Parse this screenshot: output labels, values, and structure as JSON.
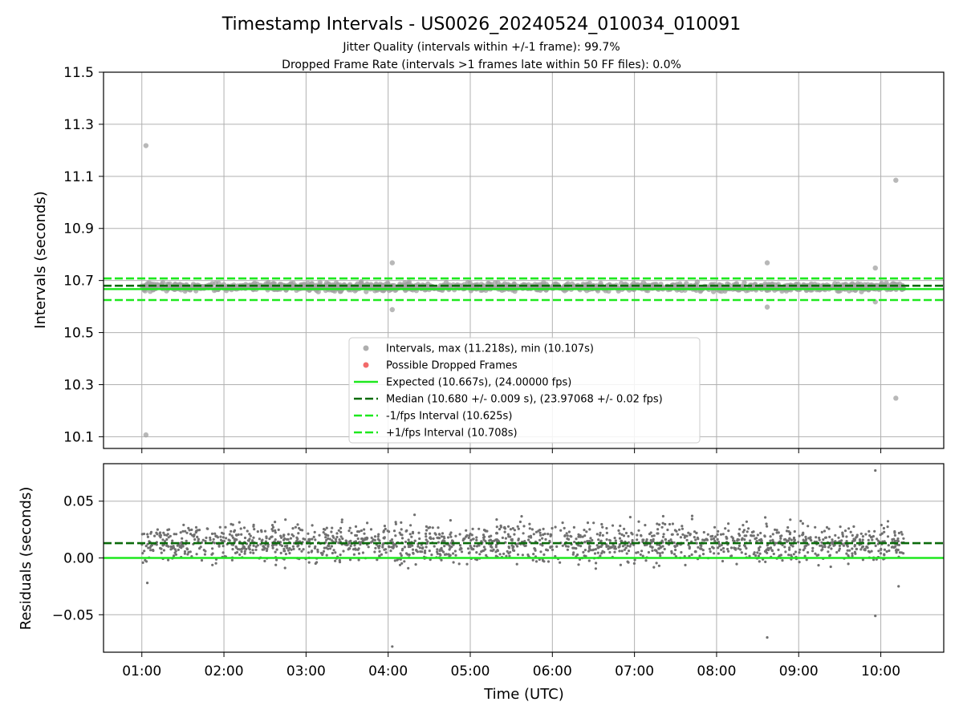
{
  "chart_data": [
    {
      "type": "scatter",
      "title": "Timestamp Intervals - US0026_20240524_010034_010091",
      "subtitle_lines": [
        "Jitter Quality (intervals within +/-1 frame): 99.7%",
        "Dropped Frame Rate (intervals >1 frames late within 50 FF files): 0.0%"
      ],
      "xlabel": "",
      "ylabel": "Intervals (seconds)",
      "xlim": [
        "00:32",
        "10:46"
      ],
      "ylim": [
        10.055,
        11.5
      ],
      "yticks": [
        10.1,
        10.3,
        10.5,
        10.7,
        10.9,
        11.1,
        11.3,
        11.5
      ],
      "ytick_labels": [
        "10.1",
        "10.3",
        "10.5",
        "10.7",
        "10.9",
        "11.1",
        "11.3",
        "11.5"
      ],
      "xticks": [
        "01:00",
        "02:00",
        "03:00",
        "04:00",
        "05:00",
        "06:00",
        "07:00",
        "08:00",
        "09:00",
        "10:00"
      ],
      "grid": true,
      "legend_position": "lower-center",
      "series": [
        {
          "name": "Intervals, max (11.218s), min (10.107s)",
          "kind": "scatter",
          "color": "#a0a0a0",
          "band": {
            "from": "01:00",
            "to": "10:17",
            "center": 10.675,
            "spread": 0.02
          },
          "outliers": [
            {
              "x": "01:03",
              "y": 11.218
            },
            {
              "x": "01:03",
              "y": 10.107
            },
            {
              "x": "04:03",
              "y": 10.768
            },
            {
              "x": "04:03",
              "y": 10.588
            },
            {
              "x": "08:37",
              "y": 10.768
            },
            {
              "x": "08:37",
              "y": 10.598
            },
            {
              "x": "09:56",
              "y": 10.748
            },
            {
              "x": "09:56",
              "y": 10.618
            },
            {
              "x": "10:11",
              "y": 11.085
            },
            {
              "x": "10:11",
              "y": 10.248
            }
          ]
        },
        {
          "name": "Possible Dropped Frames",
          "kind": "scatter",
          "color": "#f05050",
          "points": []
        },
        {
          "name": "Expected (10.667s), (24.00000 fps)",
          "kind": "hline",
          "y": 10.667,
          "color": "#1ee81e",
          "dash": "solid"
        },
        {
          "name": "Median (10.680 +/- 0.009 s), (23.97068 +/- 0.02 fps)",
          "kind": "hline",
          "y": 10.68,
          "color": "#0b6b0b",
          "dash": "dashed"
        },
        {
          "name": "-1/fps Interval (10.625s)",
          "kind": "hline",
          "y": 10.625,
          "color": "#1ee81e",
          "dash": "dashed"
        },
        {
          "name": "+1/fps Interval (10.708s)",
          "kind": "hline",
          "y": 10.708,
          "color": "#1ee81e",
          "dash": "dashed"
        }
      ]
    },
    {
      "type": "scatter",
      "title": "",
      "xlabel": "Time (UTC)",
      "ylabel": "Residuals (seconds)",
      "xlim": [
        "00:32",
        "10:46"
      ],
      "ylim": [
        -0.083,
        0.083
      ],
      "yticks": [
        -0.05,
        0.0,
        0.05
      ],
      "ytick_labels": [
        "−0.05",
        "0.00",
        "0.05"
      ],
      "xticks": [
        "01:00",
        "02:00",
        "03:00",
        "04:00",
        "05:00",
        "06:00",
        "07:00",
        "08:00",
        "09:00",
        "10:00"
      ],
      "grid": true,
      "series": [
        {
          "kind": "scatter",
          "color": "#707070",
          "band": {
            "from": "01:00",
            "to": "10:17",
            "center": 0.013,
            "spread": 0.02
          },
          "outliers": [
            {
              "x": "04:03",
              "y": -0.078
            },
            {
              "x": "08:37",
              "y": -0.07
            },
            {
              "x": "09:56",
              "y": 0.077
            },
            {
              "x": "09:56",
              "y": -0.051
            },
            {
              "x": "01:04",
              "y": -0.022
            },
            {
              "x": "10:13",
              "y": -0.025
            }
          ]
        },
        {
          "kind": "hline",
          "y": 0.0,
          "color": "#1ee81e",
          "dash": "solid"
        },
        {
          "kind": "hline",
          "y": 0.013,
          "color": "#0b6b0b",
          "dash": "dashed"
        }
      ]
    }
  ]
}
